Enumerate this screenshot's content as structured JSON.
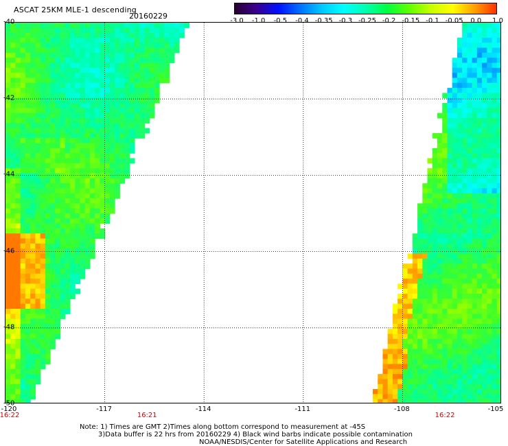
{
  "header": {
    "title": "ASCAT 25KM MLE-1 descending",
    "date": "20160229"
  },
  "colorbar": {
    "labels": [
      "-3.0",
      "-1.0",
      "-0.5",
      "-0.4",
      "-0.35",
      "-0.3",
      "-0.25",
      "-0.2",
      "-0.15",
      "-0.1",
      "-0.05",
      "0.0",
      "1.0"
    ],
    "colors": [
      "#2a0030",
      "#3a0090",
      "#0010ff",
      "#0070ff",
      "#00c8ff",
      "#00ffff",
      "#00ffb0",
      "#00ff40",
      "#60ff00",
      "#c8ff00",
      "#ffff00",
      "#ffa000",
      "#ff3000"
    ]
  },
  "map": {
    "lat_labels": [
      "-40",
      "-42",
      "-44",
      "-46",
      "-48",
      "-50"
    ],
    "lon_labels": [
      "-120",
      "-117",
      "-114",
      "-111",
      "-108",
      "-105"
    ],
    "time_labels": [
      {
        "text": "16:22",
        "lon": -120
      },
      {
        "text": "16:21",
        "lon": -115.7
      },
      {
        "text": "16:22",
        "lon": -106.7
      }
    ],
    "extent": {
      "lon": [
        -120,
        -105
      ],
      "lat": [
        -40,
        -50
      ]
    },
    "gridlines": true
  },
  "notes": {
    "line1": "Note: 1) Times are GMT 2)Times along bottom correspond to measurement at -45S",
    "line2": "3)Data buffer is 22 hrs from 20160229 4) Black wind barbs indicate possible contamination",
    "line3": "NOAA/NESDIS/Center for Satellite Applications and Research"
  }
}
